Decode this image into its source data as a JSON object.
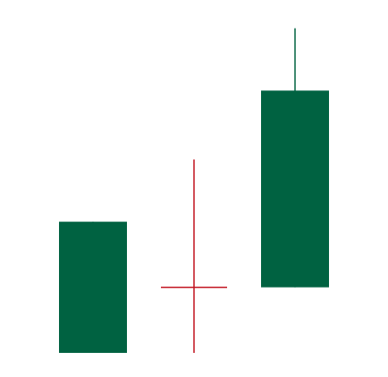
{
  "chart_data": {
    "type": "candlestick",
    "title": "",
    "xlabel": "",
    "ylabel": "",
    "ylim": [
      0,
      100
    ],
    "grid": false,
    "legend": "none",
    "colors": {
      "up": "#006241",
      "doji": "#c1121f",
      "background": "#ffffff"
    },
    "candles": [
      {
        "open": 0,
        "close": 40,
        "high": 40,
        "low": 0
      },
      {
        "open": 20,
        "close": 20,
        "high": 59,
        "low": 0
      },
      {
        "open": 20,
        "close": 80,
        "high": 99,
        "low": 20
      }
    ]
  }
}
